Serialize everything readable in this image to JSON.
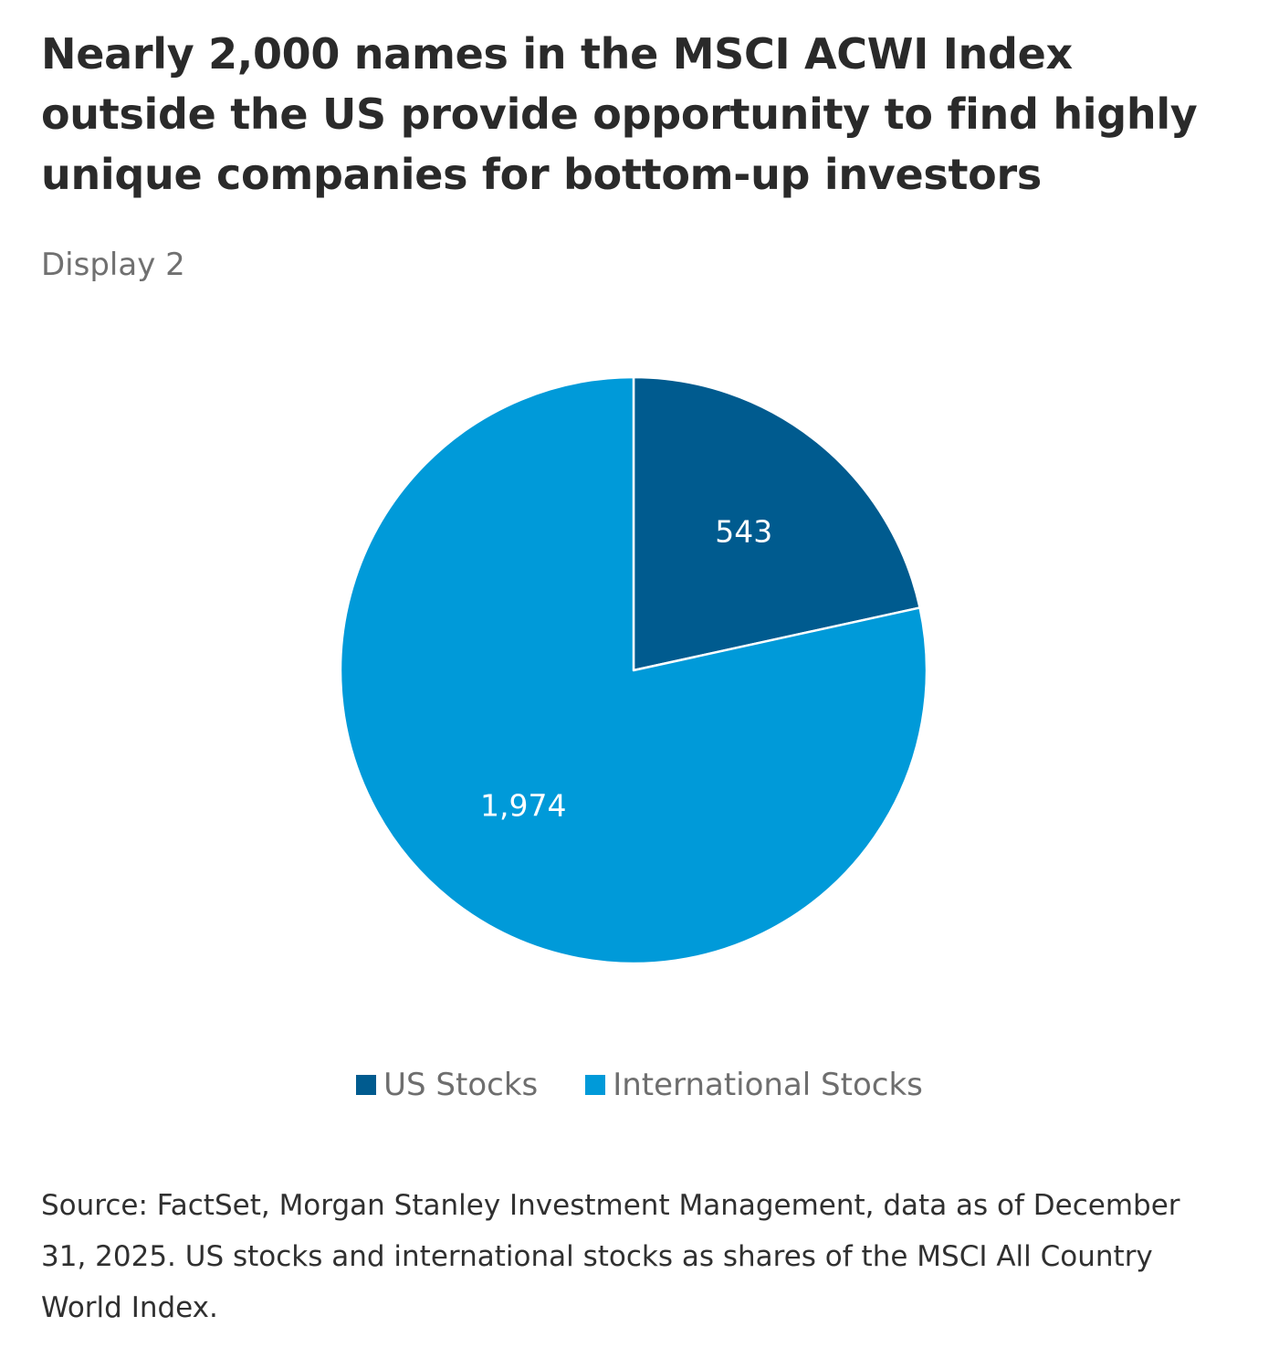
{
  "header": {
    "title": "Nearly 2,000 names in the MSCI ACWI Index outside the US provide opportunity to find highly unique companies for bottom-up investors",
    "display_label": "Display 2"
  },
  "chart_data": {
    "type": "pie",
    "start_angle": "12 o'clock, clockwise",
    "slices": [
      {
        "name": "US Stocks",
        "value": 543,
        "label": "543",
        "color": "#005b8f"
      },
      {
        "name": "International Stocks",
        "value": 1974,
        "label": "1,974",
        "color": "#009ad9"
      }
    ],
    "legend_position": "bottom"
  },
  "legend": {
    "items": [
      {
        "label": "US Stocks",
        "color": "#005b8f"
      },
      {
        "label": "International Stocks",
        "color": "#009ad9"
      }
    ]
  },
  "footnote": {
    "text": "Source: FactSet, Morgan Stanley Investment Management, data as of December 31, 2025. US stocks and international stocks as shares of the MSCI All Country World Index."
  }
}
